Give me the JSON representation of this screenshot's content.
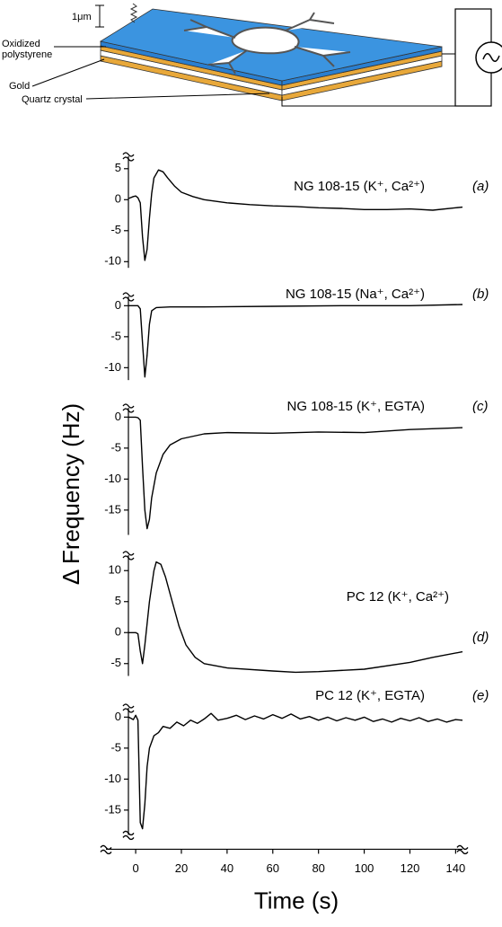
{
  "diagram": {
    "thickness_label": "1μm",
    "layer_label_line1": "Oxidized",
    "layer_label_line2": "polystyrene",
    "gold_label": "Gold",
    "quartz_label": "Quartz crystal"
  },
  "shared_y_label": "Δ Frequency (Hz)",
  "chart_data": [
    {
      "type": "line",
      "title": "NG 108-15 (K⁺, Ca²⁺)",
      "panel_label": "(a)",
      "color": "#000000",
      "x": [
        -3,
        -1,
        0,
        1,
        2,
        3,
        4,
        5,
        6,
        7,
        8,
        10,
        12,
        14,
        17,
        20,
        25,
        30,
        40,
        50,
        60,
        70,
        80,
        90,
        100,
        110,
        120,
        130,
        140,
        143
      ],
      "values": [
        0.2,
        0.5,
        0.6,
        0.3,
        -0.5,
        -6,
        -9.8,
        -8,
        -3,
        1,
        3.5,
        4.8,
        4.5,
        3.5,
        2.2,
        1.2,
        0.5,
        0,
        -0.5,
        -0.8,
        -1,
        -1.1,
        -1.3,
        -1.4,
        -1.6,
        -1.6,
        -1.5,
        -1.7,
        -1.3,
        -1.2
      ],
      "ylim": [
        -11,
        7
      ],
      "yticks": [
        -10,
        -5,
        0,
        5
      ]
    },
    {
      "type": "line",
      "title": "NG 108-15 (Na⁺, Ca²⁺)",
      "panel_label": "(b)",
      "color": "#000000",
      "x": [
        -3,
        0,
        1,
        2,
        3,
        4,
        5,
        6,
        7,
        9,
        15,
        30,
        60,
        90,
        120,
        143
      ],
      "values": [
        0,
        0,
        0,
        -0.5,
        -6,
        -11.5,
        -8,
        -3,
        -0.8,
        -0.3,
        -0.2,
        -0.2,
        -0.1,
        0,
        0,
        0.2
      ],
      "ylim": [
        -12,
        1.5
      ],
      "yticks": [
        -10,
        -5,
        0
      ]
    },
    {
      "type": "line",
      "title": "NG 108-15 (K⁺, EGTA)",
      "panel_label": "(c)",
      "color": "#000000",
      "x": [
        -3,
        0,
        1,
        2,
        3,
        4,
        5,
        6,
        7,
        9,
        12,
        15,
        20,
        30,
        40,
        60,
        80,
        100,
        120,
        143
      ],
      "values": [
        0,
        0,
        -0.1,
        -0.5,
        -8,
        -15,
        -18,
        -16.5,
        -13,
        -9,
        -6,
        -4.5,
        -3.5,
        -2.7,
        -2.5,
        -2.6,
        -2.4,
        -2.5,
        -2,
        -1.7
      ],
      "ylim": [
        -19,
        1.5
      ],
      "yticks": [
        -15,
        -10,
        -5,
        0
      ]
    },
    {
      "type": "line",
      "title": "PC 12 (K⁺, Ca²⁺)",
      "panel_label": "(d)",
      "color": "#000000",
      "x": [
        -3,
        0,
        1,
        2,
        3,
        4,
        6,
        8,
        9,
        11,
        13,
        16,
        19,
        22,
        26,
        30,
        40,
        60,
        70,
        80,
        100,
        120,
        130,
        143
      ],
      "values": [
        0,
        0,
        -0.2,
        -3,
        -5,
        -2,
        5,
        10,
        11.4,
        11,
        9,
        5,
        1,
        -2,
        -4,
        -5,
        -5.7,
        -6.2,
        -6.4,
        -6.3,
        -5.9,
        -4.8,
        -4,
        -3.1
      ],
      "ylim": [
        -7,
        12.5
      ],
      "yticks": [
        -5,
        0,
        5,
        10
      ]
    },
    {
      "type": "line",
      "title": "PC 12 (K⁺, EGTA)",
      "panel_label": "(e)",
      "color": "#000000",
      "x": [
        -3,
        -1,
        0,
        1,
        2,
        3,
        4,
        5,
        6,
        8,
        10,
        12,
        15,
        18,
        21,
        24,
        27,
        30,
        33,
        36,
        40,
        44,
        48,
        52,
        56,
        60,
        64,
        68,
        72,
        76,
        80,
        84,
        88,
        92,
        96,
        100,
        104,
        108,
        112,
        116,
        120,
        124,
        128,
        132,
        136,
        140,
        143
      ],
      "values": [
        0,
        -0.4,
        0.3,
        -0.5,
        -17,
        -18,
        -14,
        -8,
        -5,
        -3,
        -2.5,
        -1.5,
        -1.8,
        -0.8,
        -1.4,
        -0.5,
        -1,
        -0.3,
        0.6,
        -0.5,
        -0.2,
        0.3,
        -0.4,
        0.2,
        -0.3,
        0.4,
        -0.2,
        0.5,
        -0.3,
        0.1,
        -0.5,
        0,
        -0.6,
        -0.1,
        -0.5,
        0,
        -0.7,
        -0.3,
        -0.8,
        -0.2,
        -0.6,
        -0.1,
        -0.7,
        -0.3,
        -0.8,
        -0.4,
        -0.5
      ],
      "ylim": [
        -19,
        1.5
      ],
      "yticks": [
        -15,
        -10,
        -5,
        0
      ],
      "x_label": "Time (s)",
      "xlim": [
        -13,
        143
      ],
      "xticks": [
        0,
        20,
        40,
        60,
        80,
        100,
        120,
        140
      ]
    }
  ]
}
